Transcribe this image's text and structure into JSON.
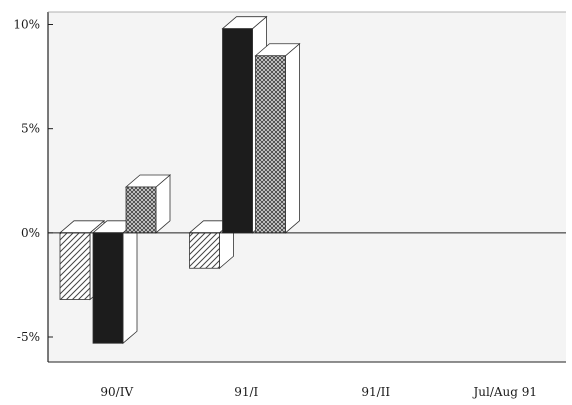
{
  "chart_data": {
    "type": "bar",
    "style": "3d",
    "categories": [
      "90/IV",
      "91/I",
      "91/II",
      "Jul/Aug 91"
    ],
    "series": [
      {
        "values": [
          -3.2,
          -1.7,
          null,
          null
        ],
        "fill": "hatched"
      },
      {
        "values": [
          -5.3,
          9.8,
          null,
          null
        ],
        "fill": "solid-black"
      },
      {
        "values": [
          2.2,
          8.5,
          null,
          null
        ],
        "fill": "crosshatched"
      }
    ],
    "yticks": [
      10,
      5,
      0,
      -5
    ],
    "ytick_labels": [
      "10%",
      "5%",
      "0%",
      "-5%"
    ],
    "ylim": [
      -6.2,
      10.6
    ],
    "grid": false,
    "legend": "none",
    "title": "",
    "xlabel": "",
    "ylabel": ""
  },
  "colors": {
    "background": "#ffffff",
    "plot_area": "#f4f4f4",
    "axis": "#222222",
    "solid_bar": "#1c1c1c",
    "hatch_line": "#444444",
    "crosshatch_bg": "#d8d8d8"
  }
}
